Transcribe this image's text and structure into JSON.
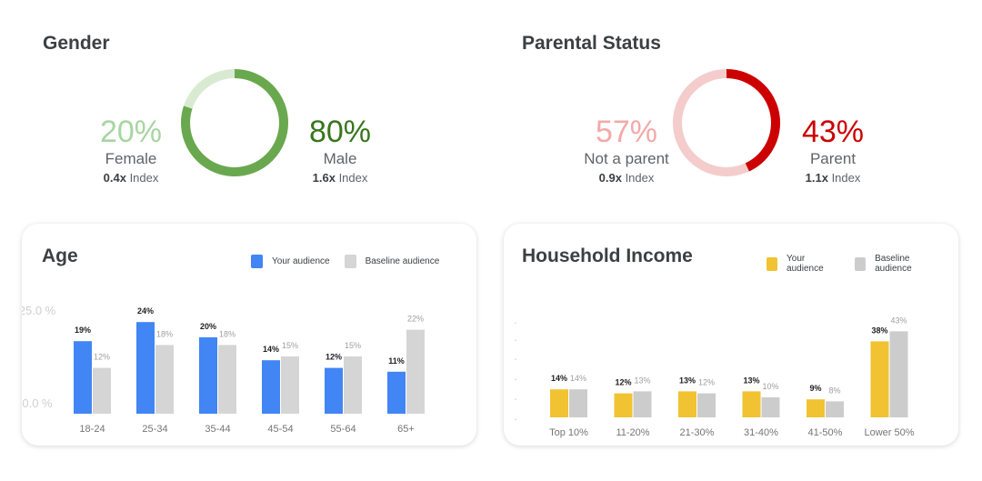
{
  "gender": {
    "title": "Gender",
    "female": {
      "pct": "20%",
      "label": "Female",
      "index_value": "0.4x",
      "index_label": "Index"
    },
    "male": {
      "pct": "80%",
      "label": "Male",
      "index_value": "1.6x",
      "index_label": "Index"
    },
    "colors": {
      "female": "#a8d5a2",
      "male": "#6aa84f",
      "female_ring": "#d9ead3",
      "male_text": "#38761d"
    }
  },
  "parental": {
    "title": "Parental Status",
    "not_parent": {
      "pct": "57%",
      "label": "Not a parent",
      "index_value": "0.9x",
      "index_label": "Index"
    },
    "parent": {
      "pct": "43%",
      "label": "Parent",
      "index_value": "1.1x",
      "index_label": "Index"
    },
    "colors": {
      "not_parent": "#f4b6b6",
      "parent": "#cc0000",
      "not_parent_ring": "#f4cccc"
    }
  },
  "age": {
    "legend": {
      "yours": "Your audience",
      "baseline": "Baseline audience"
    },
    "y_ticks": [
      "25.0 %",
      "0.0 %"
    ],
    "colors": {
      "yours": "#4285f4",
      "baseline": "#d5d5d5"
    }
  },
  "income": {
    "legend": {
      "yours": "Your audience",
      "baseline": "Baseline audience"
    },
    "y_ticks": [
      ".",
      ".",
      ".",
      ".",
      ".",
      "."
    ],
    "colors": {
      "yours": "#f1c232",
      "baseline": "#cccccc"
    }
  },
  "chart_data": [
    {
      "type": "pie",
      "title": "Gender",
      "categories": [
        "Female",
        "Male"
      ],
      "values": [
        20,
        80
      ],
      "index": [
        "0.4x",
        "1.6x"
      ]
    },
    {
      "type": "pie",
      "title": "Parental Status",
      "categories": [
        "Not a parent",
        "Parent"
      ],
      "values": [
        57,
        43
      ],
      "index": [
        "0.9x",
        "1.1x"
      ]
    },
    {
      "type": "bar",
      "title": "Age",
      "categories": [
        "18-24",
        "25-34",
        "35-44",
        "45-54",
        "55-64",
        "65+"
      ],
      "series": [
        {
          "name": "Your audience",
          "values": [
            19,
            24,
            20,
            14,
            12,
            11
          ]
        },
        {
          "name": "Baseline audience",
          "values": [
            12,
            18,
            18,
            15,
            15,
            22
          ]
        }
      ],
      "ylim": [
        0,
        25
      ]
    },
    {
      "type": "bar",
      "title": "Household Income",
      "categories": [
        "Top 10%",
        "11-20%",
        "21-30%",
        "31-40%",
        "41-50%",
        "Lower 50%"
      ],
      "series": [
        {
          "name": "Your audience",
          "values": [
            14,
            12,
            13,
            13,
            9,
            38
          ]
        },
        {
          "name": "Baseline audience",
          "values": [
            14,
            13,
            12,
            10,
            8,
            43
          ]
        }
      ],
      "ylim": [
        0,
        50
      ]
    }
  ]
}
